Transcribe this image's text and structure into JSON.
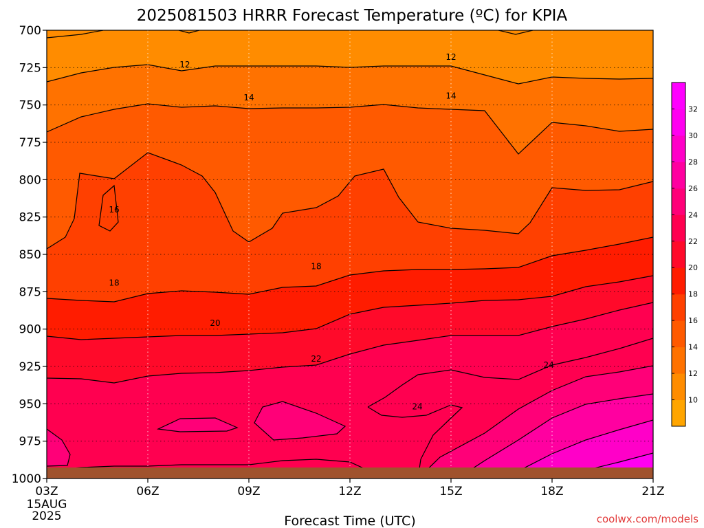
{
  "chart_data": {
    "type": "heatmap",
    "title": "2025081503 HRRR Forecast Temperature (ºC) for KPIA",
    "xlabel": "Forecast Time (UTC)",
    "x_ticks": [
      "03Z",
      "06Z",
      "09Z",
      "12Z",
      "15Z",
      "18Z",
      "21Z"
    ],
    "x_first_tick_sublabels": [
      "15AUG",
      "2025"
    ],
    "y_ticks": [
      700,
      725,
      750,
      775,
      800,
      825,
      850,
      875,
      900,
      925,
      950,
      975,
      1000
    ],
    "xlim": [
      3,
      21
    ],
    "ylim": [
      1000,
      700
    ],
    "contour_levels": [
      12,
      14,
      16,
      18,
      20,
      22,
      24
    ],
    "contour_labels": [
      {
        "text": "12",
        "x": 7.1,
        "y": 723
      },
      {
        "text": "12",
        "x": 15.0,
        "y": 718
      },
      {
        "text": "14",
        "x": 9.0,
        "y": 745
      },
      {
        "text": "14",
        "x": 15.0,
        "y": 744
      },
      {
        "text": "16",
        "x": 5.0,
        "y": 820
      },
      {
        "text": "18",
        "x": 5.0,
        "y": 869
      },
      {
        "text": "18",
        "x": 11.0,
        "y": 858
      },
      {
        "text": "20",
        "x": 8.0,
        "y": 896
      },
      {
        "text": "22",
        "x": 11.0,
        "y": 920
      },
      {
        "text": "24",
        "x": 17.9,
        "y": 924
      },
      {
        "text": "24",
        "x": 14.0,
        "y": 952
      }
    ],
    "colorbar": {
      "ticks": [
        10,
        12,
        14,
        16,
        18,
        20,
        22,
        24,
        26,
        28,
        30,
        32
      ],
      "colors": [
        "#ffa500",
        "#ff8c00",
        "#ff7200",
        "#ff5a00",
        "#ff4000",
        "#ff1c00",
        "#ff0a2a",
        "#ff0050",
        "#ff0078",
        "#ff00a0",
        "#ff00c8",
        "#ff00f0",
        "#ff00ff"
      ]
    },
    "ground_color": "#a0522d",
    "line_color": "#000000",
    "grid": "dotted"
  },
  "credit": "coolwx.com/models"
}
